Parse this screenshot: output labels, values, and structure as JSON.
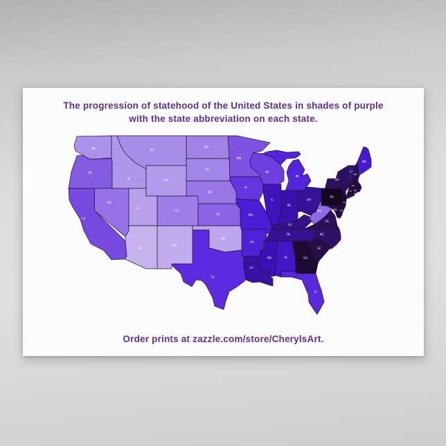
{
  "poster": {
    "title_line1": "The progression of statehood of the United States in shades of purple",
    "title_line2": "with the state abbreviation on each state.",
    "footer": "Order prints at zazzle.com/store/CherylsArt.",
    "title_color": "#5e2e92",
    "background_color": "#fcfcfd"
  },
  "map": {
    "description": "U.S. states shaded by order of statehood, darkest = earliest",
    "border_color": "#221438",
    "label_color": "#ffffff",
    "states": [
      {
        "abbr": "DE",
        "order": 1,
        "color": "#0f0618"
      },
      {
        "abbr": "PA",
        "order": 2,
        "color": "#140721"
      },
      {
        "abbr": "NJ",
        "order": 3,
        "color": "#18092a"
      },
      {
        "abbr": "GA",
        "order": 4,
        "color": "#1d0a33"
      },
      {
        "abbr": "CT",
        "order": 5,
        "color": "#200b38"
      },
      {
        "abbr": "MA",
        "order": 6,
        "color": "#220c3e"
      },
      {
        "abbr": "MD",
        "order": 7,
        "color": "#250d43"
      },
      {
        "abbr": "SC",
        "order": 8,
        "color": "#270e49"
      },
      {
        "abbr": "NH",
        "order": 9,
        "color": "#290f50"
      },
      {
        "abbr": "VA",
        "order": 10,
        "color": "#2b1058"
      },
      {
        "abbr": "NY",
        "order": 11,
        "color": "#2d1060"
      },
      {
        "abbr": "NC",
        "order": 12,
        "color": "#2f1166"
      },
      {
        "abbr": "RI",
        "order": 13,
        "color": "#311170"
      },
      {
        "abbr": "VT",
        "order": 14,
        "color": "#32127a"
      },
      {
        "abbr": "KY",
        "order": 15,
        "color": "#341285"
      },
      {
        "abbr": "TN",
        "order": 16,
        "color": "#35128f"
      },
      {
        "abbr": "OH",
        "order": 17,
        "color": "#371298"
      },
      {
        "abbr": "LA",
        "order": 18,
        "color": "#3812a2"
      },
      {
        "abbr": "IN",
        "order": 19,
        "color": "#3a11ac"
      },
      {
        "abbr": "MS",
        "order": 20,
        "color": "#3b11b5"
      },
      {
        "abbr": "IL",
        "order": 21,
        "color": "#3f14bd"
      },
      {
        "abbr": "AL",
        "order": 22,
        "color": "#4317c6"
      },
      {
        "abbr": "ME",
        "order": 23,
        "color": "#461ace"
      },
      {
        "abbr": "MO",
        "order": 24,
        "color": "#4a1dd6"
      },
      {
        "abbr": "AR",
        "order": 25,
        "color": "#4f21d8"
      },
      {
        "abbr": "MI",
        "order": 26,
        "color": "#5324db"
      },
      {
        "abbr": "FL",
        "order": 27,
        "color": "#5828dd"
      },
      {
        "abbr": "TX",
        "order": 28,
        "color": "#5c2bdf"
      },
      {
        "abbr": "IA",
        "order": 29,
        "color": "#6535e0"
      },
      {
        "abbr": "WI",
        "order": 30,
        "color": "#6d3fe1"
      },
      {
        "abbr": "CA",
        "order": 31,
        "color": "#7649e1"
      },
      {
        "abbr": "MN",
        "order": 32,
        "color": "#7e53e2"
      },
      {
        "abbr": "OR",
        "order": 33,
        "color": "#845be3"
      },
      {
        "abbr": "KS",
        "order": 34,
        "color": "#8a63e4"
      },
      {
        "abbr": "WV",
        "order": 35,
        "color": "#906ae5"
      },
      {
        "abbr": "NV",
        "order": 36,
        "color": "#9672e6"
      },
      {
        "abbr": "NE",
        "order": 37,
        "color": "#9977e6"
      },
      {
        "abbr": "CO",
        "order": 38,
        "color": "#9d7de7"
      },
      {
        "abbr": "ND",
        "order": 39,
        "color": "#a082e7"
      },
      {
        "abbr": "SD",
        "order": 40,
        "color": "#a387e8"
      },
      {
        "abbr": "MT",
        "order": 41,
        "color": "#a78ce8"
      },
      {
        "abbr": "WA",
        "order": 42,
        "color": "#ab91e9"
      },
      {
        "abbr": "ID",
        "order": 43,
        "color": "#ae96e9"
      },
      {
        "abbr": "WY",
        "order": 44,
        "color": "#b29bea"
      },
      {
        "abbr": "UT",
        "order": 45,
        "color": "#b7a1eb"
      },
      {
        "abbr": "OK",
        "order": 46,
        "color": "#bca7ec"
      },
      {
        "abbr": "NM",
        "order": 47,
        "color": "#c1adee"
      },
      {
        "abbr": "AZ",
        "order": 48,
        "color": "#c6b3ee"
      }
    ]
  }
}
